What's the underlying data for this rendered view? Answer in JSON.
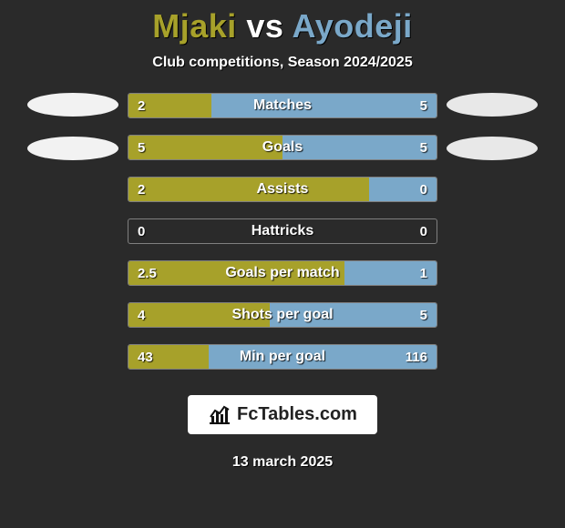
{
  "background_color": "#2a2a2a",
  "title": {
    "player1": "Mjaki",
    "vs": "vs",
    "player2": "Ayodeji",
    "player1_color": "#a7a12a",
    "vs_color": "#ffffff",
    "player2_color": "#7aa8c9",
    "fontsize": 36
  },
  "subtitle": "Club competitions, Season 2024/2025",
  "left_color": "#a7a12a",
  "right_color": "#7aa8c9",
  "bar_border_color": "rgba(255,255,255,0.4)",
  "stats": [
    {
      "label": "Matches",
      "left_val": "2",
      "right_val": "5",
      "left_pct": 27,
      "right_pct": 73
    },
    {
      "label": "Goals",
      "left_val": "5",
      "right_val": "5",
      "left_pct": 50,
      "right_pct": 50
    },
    {
      "label": "Assists",
      "left_val": "2",
      "right_val": "0",
      "left_pct": 78,
      "right_pct": 22
    },
    {
      "label": "Hattricks",
      "left_val": "0",
      "right_val": "0",
      "left_pct": 0,
      "right_pct": 0
    },
    {
      "label": "Goals per match",
      "left_val": "2.5",
      "right_val": "1",
      "left_pct": 70,
      "right_pct": 30
    },
    {
      "label": "Shots per goal",
      "left_val": "4",
      "right_val": "5",
      "left_pct": 46,
      "right_pct": 54
    },
    {
      "label": "Min per goal",
      "left_val": "43",
      "right_val": "116",
      "left_pct": 26,
      "right_pct": 74
    }
  ],
  "footer": {
    "brand": "FcTables.com",
    "date": "13 march 2025"
  }
}
